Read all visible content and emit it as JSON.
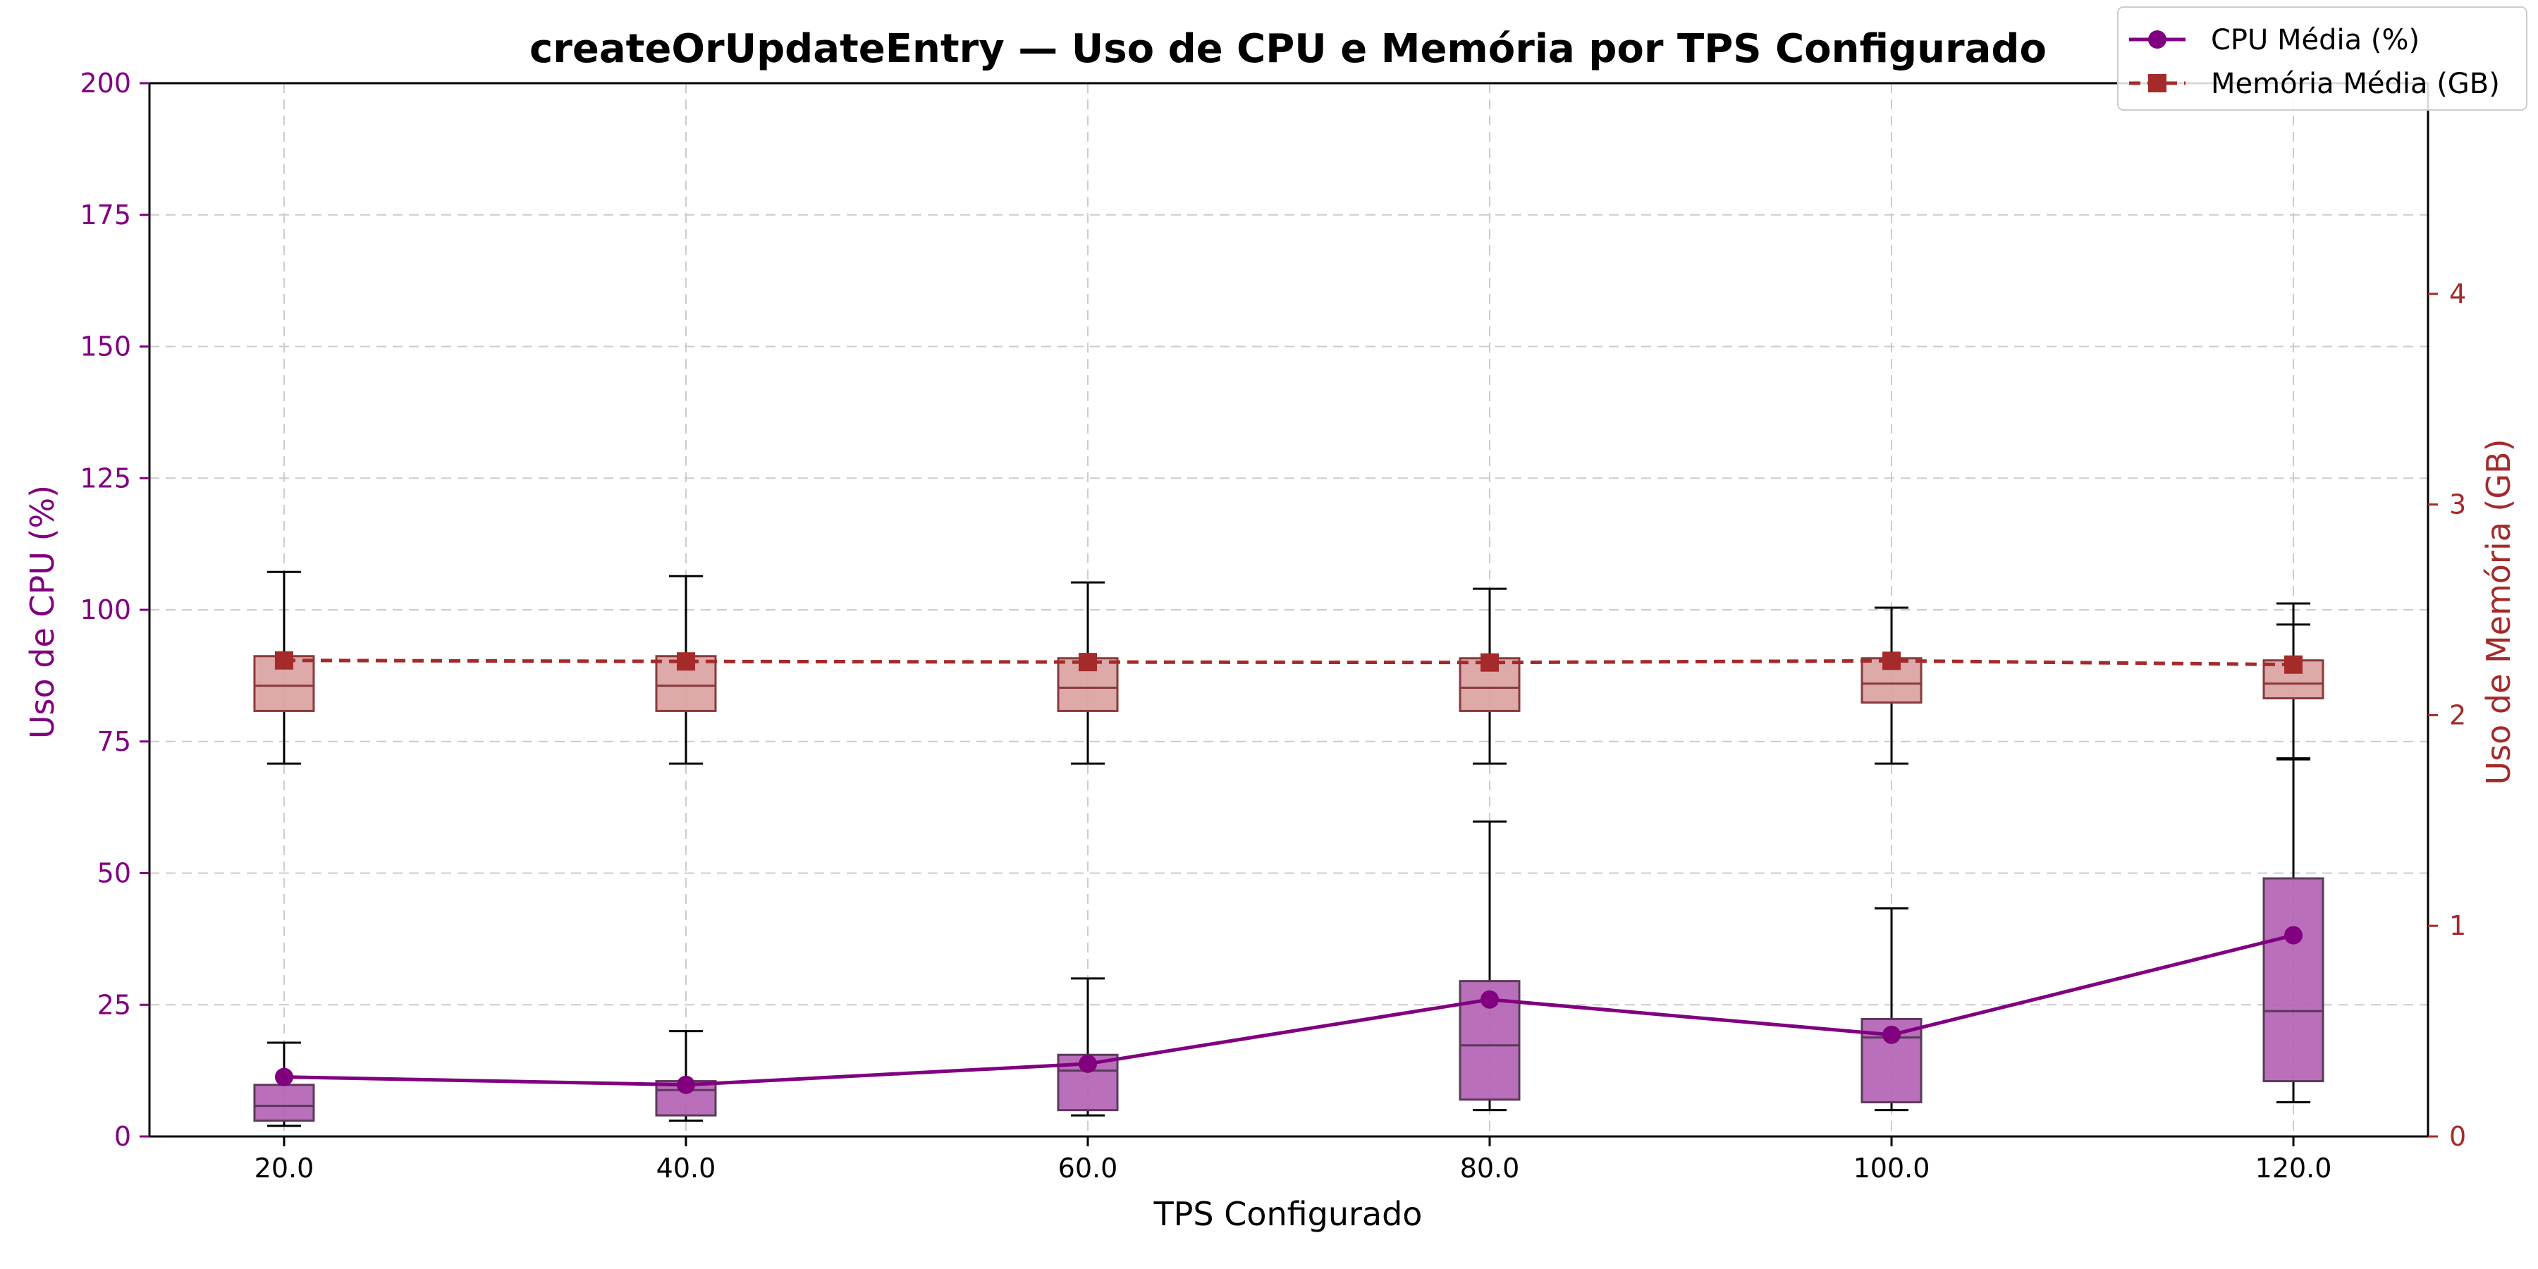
{
  "chart_data": {
    "type": "box-line",
    "title": "createOrUpdateEntry — Uso de CPU e Memória por TPS Configurado",
    "xlabel": "TPS Configurado",
    "ylabel_left": "Uso de CPU (%)",
    "ylabel_right": "Uso de Memória (GB)",
    "x_ticks": [
      "20.0",
      "40.0",
      "60.0",
      "80.0",
      "100.0",
      "120.0"
    ],
    "x_values": [
      20,
      40,
      60,
      80,
      100,
      120
    ],
    "xlim": [
      13.3,
      126.7
    ],
    "ylim_left": [
      0,
      200
    ],
    "y_ticks_left": [
      "0",
      "25",
      "50",
      "75",
      "100",
      "125",
      "150",
      "175",
      "200"
    ],
    "ylim_right": [
      0,
      5
    ],
    "y_ticks_right": [
      "0",
      "1",
      "2",
      "3",
      "4"
    ],
    "grid": true,
    "legend_placement": "top-right",
    "colors": {
      "cpu": "#800080",
      "cpu_box_fill": "#b35fb3",
      "memory": "#a52a2a",
      "memory_box_fill": "#d9a0a0",
      "whisker": "#000000",
      "grid": "#cccccc"
    },
    "series": [
      {
        "name": "CPU Média (%)",
        "axis": "left",
        "line_style": "solid",
        "marker": "circle",
        "mean": [
          11.3,
          9.8,
          13.8,
          26.0,
          19.3,
          38.2
        ],
        "box": [
          {
            "whislo": 2.0,
            "q1": 3.0,
            "median": 5.8,
            "q3": 9.8,
            "whishi": 17.8
          },
          {
            "whislo": 3.0,
            "q1": 4.0,
            "median": 8.8,
            "q3": 10.5,
            "whishi": 20.0
          },
          {
            "whislo": 4.0,
            "q1": 5.0,
            "median": 12.5,
            "q3": 15.5,
            "whishi": 30.0
          },
          {
            "whislo": 5.0,
            "q1": 7.0,
            "median": 17.3,
            "q3": 29.5,
            "whishi": 59.8
          },
          {
            "whislo": 5.0,
            "q1": 6.5,
            "median": 18.8,
            "q3": 22.3,
            "whishi": 43.3
          },
          {
            "whislo": 6.5,
            "q1": 10.5,
            "median": 23.8,
            "q3": 49.0,
            "whishi": 71.8
          }
        ]
      },
      {
        "name": "Memória Média (GB)",
        "axis": "right",
        "line_style": "dashed",
        "marker": "square",
        "mean": [
          2.26,
          2.255,
          2.252,
          2.25,
          2.258,
          2.24
        ],
        "box": [
          {
            "whislo": 1.77,
            "q1": 2.02,
            "median": 2.14,
            "q3": 2.28,
            "whishi": 2.68
          },
          {
            "whislo": 1.77,
            "q1": 2.02,
            "median": 2.14,
            "q3": 2.28,
            "whishi": 2.66
          },
          {
            "whislo": 1.77,
            "q1": 2.02,
            "median": 2.13,
            "q3": 2.27,
            "whishi": 2.63
          },
          {
            "whislo": 1.77,
            "q1": 2.02,
            "median": 2.13,
            "q3": 2.27,
            "whishi": 2.6
          },
          {
            "whislo": 1.77,
            "q1": 2.06,
            "median": 2.15,
            "q3": 2.27,
            "whishi": 2.51
          },
          {
            "whislo": 1.79,
            "q1": 2.08,
            "median": 2.15,
            "q3": 2.26,
            "whishi": 2.53,
            "extra_cap": 2.43
          }
        ]
      }
    ]
  }
}
